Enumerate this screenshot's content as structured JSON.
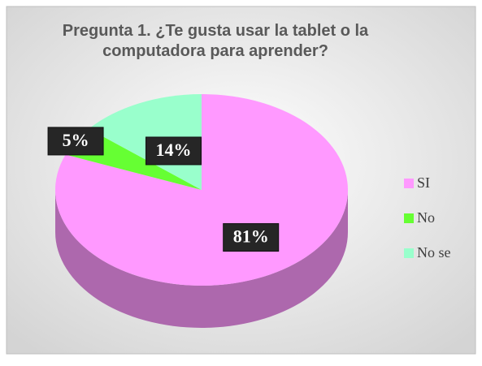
{
  "chart_data": {
    "type": "pie",
    "title": "Pregunta 1. ¿Te gusta usar la tablet o la computadora para aprender?",
    "categories": [
      "SI",
      "No",
      "No se"
    ],
    "values": [
      81,
      5,
      14
    ],
    "value_labels": [
      "81%",
      "5%",
      "14%"
    ],
    "colors": [
      "#ff99ff",
      "#66ff33",
      "#99ffcc"
    ],
    "legend": "right"
  }
}
